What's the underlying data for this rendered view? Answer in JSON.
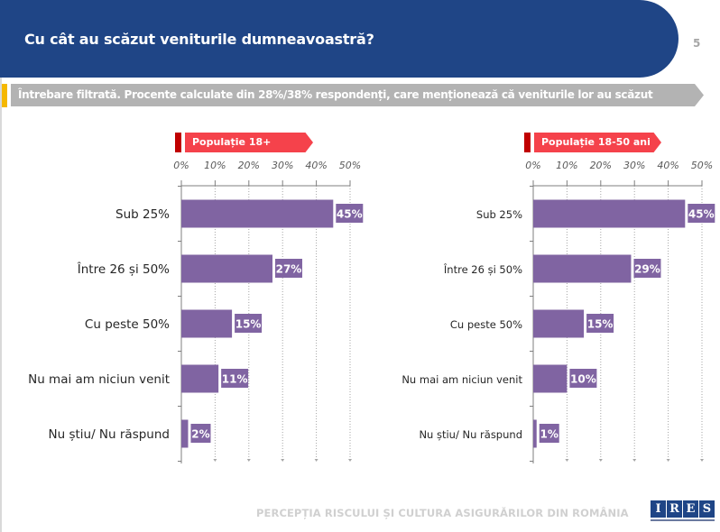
{
  "header": {
    "title": "Cu cât au scăzut veniturile dumneavoastră?",
    "page_number": "5"
  },
  "note": "Întrebare filtrată. Procente calculate din 28%/38% respondenți, care menționează că veniturile lor au scăzut",
  "footer": {
    "text": "PERCEPȚIA RISCULUI ȘI CULTURA ASIGURĂRILOR DIN ROMÂNIA",
    "logo_letters": [
      "I",
      "R",
      "E",
      "S"
    ]
  },
  "colors": {
    "header": "#1f4586",
    "bar": "#8064a2",
    "tag": "#f5424b",
    "tag_dark": "#c00000",
    "note": "#b3b3b3",
    "accent": "#f5b800"
  },
  "chart_data": [
    {
      "type": "bar",
      "orientation": "horizontal",
      "title": "Populație 18+",
      "categories": [
        "Sub 25%",
        "Între 26 și 50%",
        "Cu peste 50%",
        "Nu mai am niciun venit",
        "Nu știu/ Nu răspund"
      ],
      "values": [
        45,
        27,
        15,
        11,
        2
      ],
      "labels": [
        "45%",
        "27%",
        "15%",
        "11%",
        "2%"
      ],
      "xticks": [
        "0%",
        "10%",
        "20%",
        "30%",
        "40%",
        "50%"
      ],
      "xlim": [
        0,
        50
      ],
      "unit": "%"
    },
    {
      "type": "bar",
      "orientation": "horizontal",
      "title": "Populație 18-50 ani",
      "categories": [
        "Sub 25%",
        "Între 26 și 50%",
        "Cu peste 50%",
        "Nu mai am niciun venit",
        "Nu știu/ Nu răspund"
      ],
      "values": [
        45,
        29,
        15,
        10,
        1
      ],
      "labels": [
        "45%",
        "29%",
        "15%",
        "10%",
        "1%"
      ],
      "xticks": [
        "0%",
        "10%",
        "20%",
        "30%",
        "40%",
        "50%"
      ],
      "xlim": [
        0,
        50
      ],
      "unit": "%"
    }
  ]
}
